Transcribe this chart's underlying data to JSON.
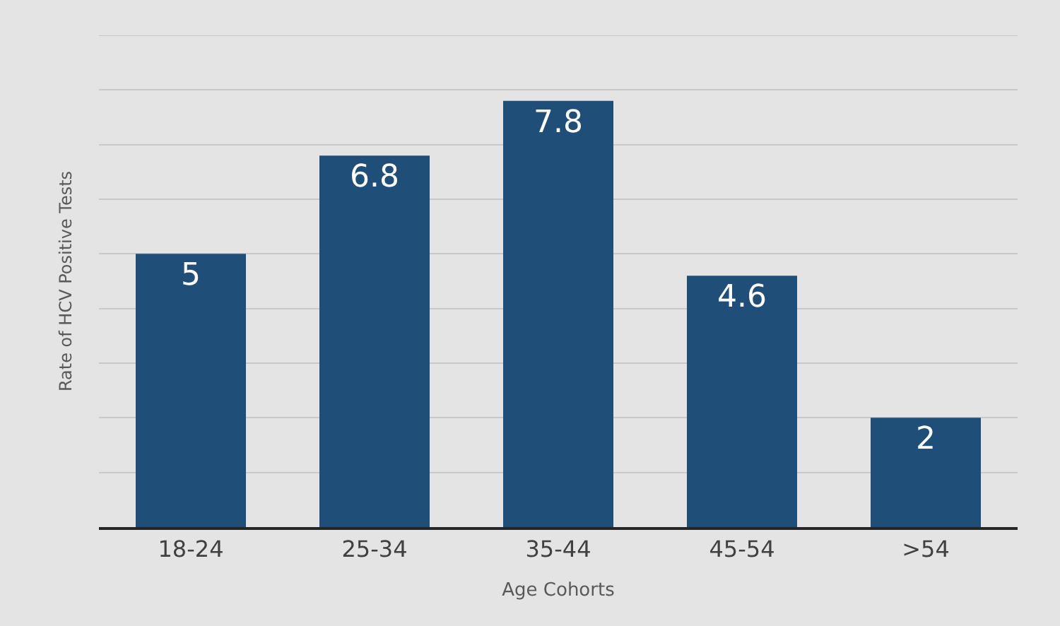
{
  "chart_data": {
    "type": "bar",
    "xlabel": "Age Cohorts",
    "ylabel": "Rate of HCV Positive Tests",
    "categories": [
      "18-24",
      "25-34",
      "35-44",
      "45-54",
      ">54"
    ],
    "values": [
      5,
      6.8,
      7.8,
      4.6,
      2
    ],
    "color": "#1f4e79",
    "data_labels": true,
    "ylim": [
      0,
      9
    ],
    "yticks": [
      {
        "value": 0,
        "label": null
      },
      {
        "value": 1,
        "label": null
      },
      {
        "value": 2,
        "label": null
      },
      {
        "value": 3,
        "label": null
      },
      {
        "value": 4,
        "label": null
      },
      {
        "value": 5,
        "label": null
      },
      {
        "value": 6,
        "label": null
      },
      {
        "value": 7,
        "label": null
      },
      {
        "value": 8,
        "label": null
      },
      {
        "value": 9,
        "label": null
      }
    ],
    "grid": "y",
    "tick_labels": "x",
    "legend": false
  }
}
